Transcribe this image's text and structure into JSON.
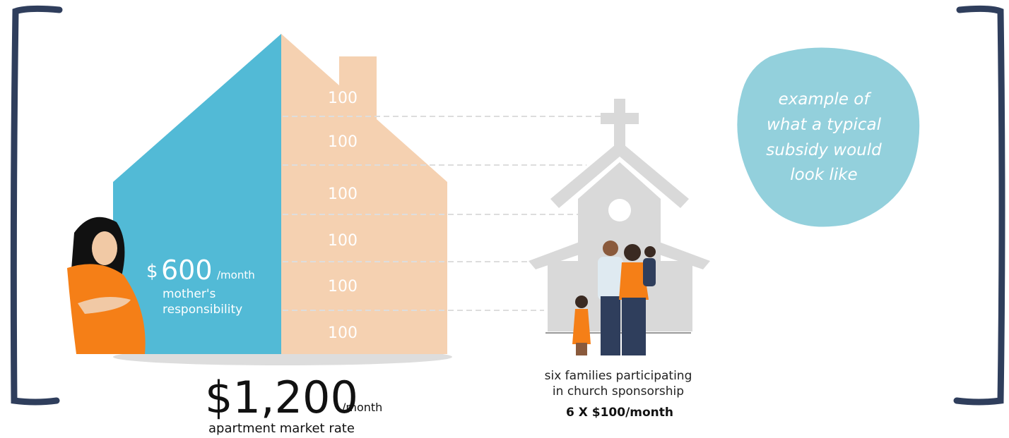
{
  "house": {
    "shares": [
      "100",
      "100",
      "100",
      "100",
      "100",
      "100"
    ],
    "mother": {
      "currency": "$",
      "amount": "600",
      "unit": "/month",
      "label_line1": "mother's",
      "label_line2": "responsibility"
    },
    "total": {
      "amount": "$1,200",
      "unit": "/month",
      "label": "apartment market rate"
    }
  },
  "church": {
    "caption_line1": "six families participating",
    "caption_line2": "in church sponsorship",
    "formula": "6 X $100/month"
  },
  "note": {
    "lines": [
      "example of",
      "what a typical",
      "subsidy would",
      "look like"
    ]
  }
}
